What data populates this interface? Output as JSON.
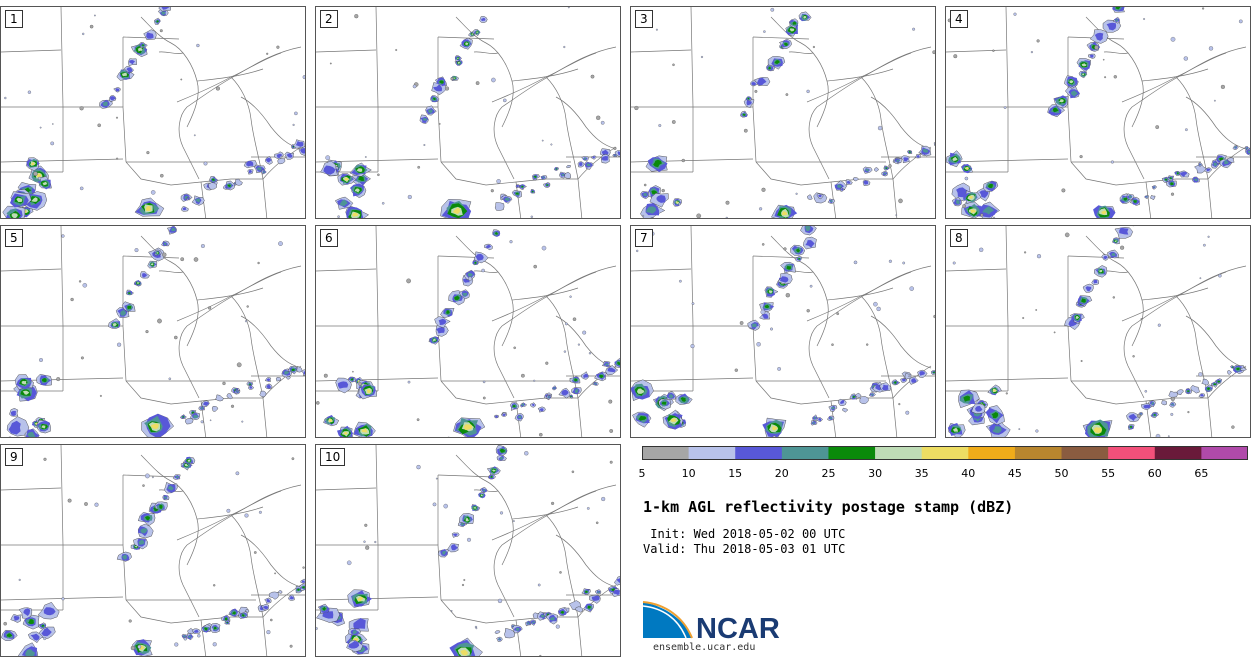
{
  "title": "1-km AGL reflectivity postage stamp (dBZ)",
  "init_line": " Init: Wed 2018-05-02 00 UTC",
  "valid_line": "Valid: Thu 2018-05-03 01 UTC",
  "logo": {
    "name": "NCAR",
    "url": "ensemble.ucar.edu",
    "blue": "#0079c1",
    "orange": "#f0a030"
  },
  "panels": [
    "1",
    "2",
    "3",
    "4",
    "5",
    "6",
    "7",
    "8",
    "9",
    "10"
  ],
  "colorbar": {
    "ticks": [
      "5",
      "10",
      "15",
      "20",
      "25",
      "30",
      "35",
      "40",
      "45",
      "50",
      "55",
      "60",
      "65"
    ],
    "colors": [
      "#a6a6a6",
      "#b8c2ea",
      "#5858d8",
      "#4e9595",
      "#0a8a0a",
      "#bedcb6",
      "#eddd63",
      "#f0ac1a",
      "#b8862e",
      "#8a5c40",
      "#f2507a",
      "#6a1a3a",
      "#b04aaa"
    ]
  }
}
